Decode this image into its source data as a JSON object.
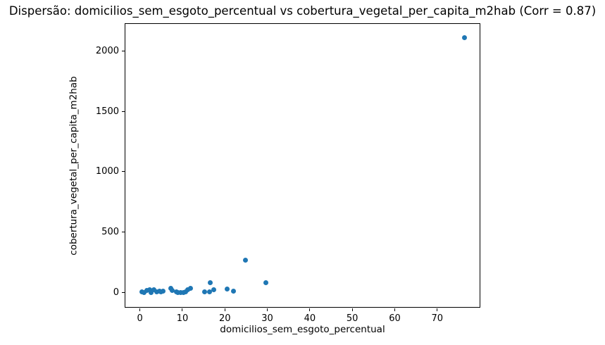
{
  "title": "Dispersão: domicilios_sem_esgoto_percentual vs cobertura_vegetal_per_capita_m2hab (Corr = 0.87)",
  "chart_data": {
    "type": "scatter",
    "title": "Dispersão: domicilios_sem_esgoto_percentual vs cobertura_vegetal_per_capita_m2hab (Corr = 0.87)",
    "xlabel": "domicilios_sem_esgoto_percentual",
    "ylabel": "cobertura_vegetal_per_capita_m2hab",
    "correlation": 0.87,
    "xlim": [
      -3.43,
      80.32
    ],
    "ylim": [
      -128,
      2221
    ],
    "x_ticks": [
      0,
      10,
      20,
      30,
      40,
      50,
      60,
      70
    ],
    "y_ticks": [
      0,
      500,
      1000,
      1500,
      2000
    ],
    "grid": false,
    "legend": "none",
    "marker_color": "#1f77b4",
    "axis_color": "#000000",
    "background_color": "#ffffff",
    "points": [
      [
        0.5,
        8
      ],
      [
        0.9,
        2
      ],
      [
        1.6,
        18
      ],
      [
        2.3,
        24
      ],
      [
        2.6,
        4
      ],
      [
        3.3,
        26
      ],
      [
        3.9,
        6
      ],
      [
        4.6,
        14
      ],
      [
        5.0,
        10
      ],
      [
        5.4,
        12
      ],
      [
        7.3,
        38
      ],
      [
        7.6,
        18
      ],
      [
        8.6,
        10
      ],
      [
        9.0,
        2
      ],
      [
        9.6,
        1
      ],
      [
        10.3,
        4
      ],
      [
        10.7,
        10
      ],
      [
        11.3,
        28
      ],
      [
        11.9,
        40
      ],
      [
        15.3,
        6
      ],
      [
        16.4,
        9
      ],
      [
        16.6,
        85
      ],
      [
        17.4,
        28
      ],
      [
        20.5,
        33
      ],
      [
        22.0,
        14
      ],
      [
        24.9,
        270
      ],
      [
        29.7,
        85
      ],
      [
        76.5,
        2110
      ]
    ]
  }
}
